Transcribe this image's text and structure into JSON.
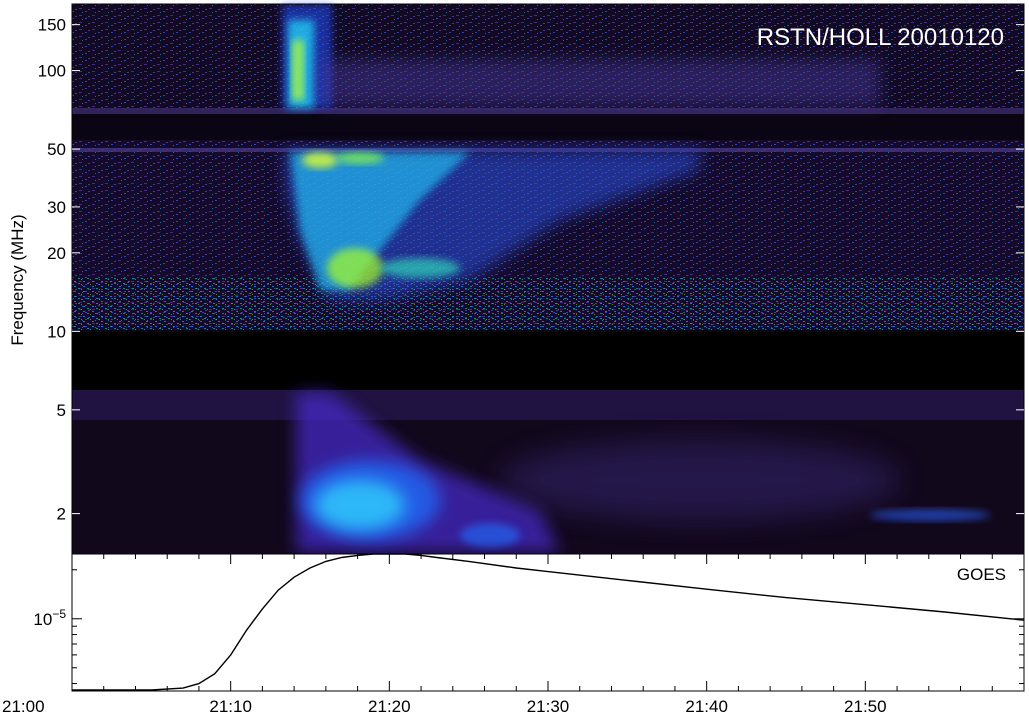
{
  "chart_data": [
    {
      "type": "heatmap",
      "title": "RSTN/HOLL 20010120",
      "xlabel": "",
      "ylabel": "Frequency (MHz)",
      "yscale": "log",
      "ylim": [
        1.4,
        180
      ],
      "y_ticks": [
        2,
        5,
        10,
        20,
        30,
        50,
        100,
        150
      ],
      "y_tick_labels": [
        "2",
        "5",
        "10",
        "20",
        "30",
        "50",
        "100",
        "150"
      ],
      "xlim": [
        "21:00",
        "22:00"
      ],
      "colors": {
        "background": "#000000",
        "low": "#3a1f6e",
        "mid": "#1f5cff",
        "high": "#00ffd0",
        "peak": "#c8ff00"
      }
    },
    {
      "type": "line",
      "title": "GOES",
      "xlabel": "",
      "ylabel": "",
      "yscale": "log",
      "ylim": [
        3.6e-06,
        2.5e-05
      ],
      "y_ticks": [
        1e-05
      ],
      "x_tick_labels": [
        "21:00",
        "21:10",
        "21:20",
        "21:30",
        "21:40",
        "21:50"
      ],
      "x_ticks_min": [
        0,
        10,
        20,
        30,
        40,
        50
      ],
      "series": [
        {
          "x": [
            0,
            5,
            7,
            8,
            9,
            10,
            11,
            12,
            13,
            14,
            15,
            16,
            17,
            18,
            19,
            20,
            21,
            22,
            23,
            25,
            28,
            30,
            35,
            40,
            45,
            50,
            55,
            60
          ],
          "y": [
            3.65e-06,
            3.65e-06,
            3.75e-06,
            4e-06,
            4.6e-06,
            6e-06,
            8.5e-06,
            1.15e-05,
            1.5e-05,
            1.8e-05,
            2.05e-05,
            2.25e-05,
            2.38e-05,
            2.45e-05,
            2.5e-05,
            2.5e-05,
            2.5e-05,
            2.45e-05,
            2.38e-05,
            2.25e-05,
            2.05e-05,
            1.95e-05,
            1.72e-05,
            1.52e-05,
            1.35e-05,
            1.22e-05,
            1.1e-05,
            9.8e-06
          ]
        }
      ]
    }
  ]
}
